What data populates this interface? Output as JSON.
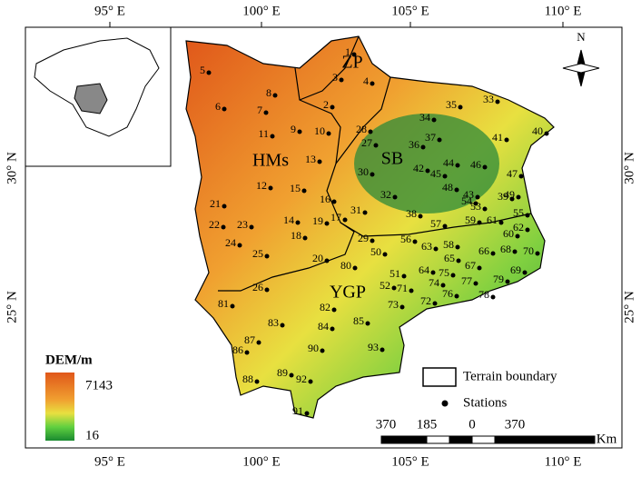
{
  "axis_labels": {
    "top": [
      "95° E",
      "100° E",
      "105° E",
      "110° E"
    ],
    "bottom": [
      "95° E",
      "100° E",
      "105° E",
      "110° E"
    ],
    "left": [
      "30° N",
      "25° N"
    ],
    "right": [
      "30° N",
      "25° N"
    ]
  },
  "regions": [
    "HMs",
    "SB",
    "ZP",
    "YGP"
  ],
  "stations": [
    "1",
    "2",
    "3",
    "4",
    "5",
    "6",
    "7",
    "8",
    "9",
    "10",
    "11",
    "12",
    "13",
    "14",
    "15",
    "16",
    "17",
    "18",
    "19",
    "20",
    "21",
    "22",
    "23",
    "24",
    "25",
    "26",
    "27",
    "28",
    "29",
    "30",
    "31",
    "32",
    "33",
    "34",
    "35",
    "36",
    "37",
    "38",
    "39",
    "40",
    "41",
    "42",
    "43",
    "44",
    "45",
    "46",
    "47",
    "48",
    "49",
    "50",
    "51",
    "52",
    "53",
    "54",
    "55",
    "56",
    "57",
    "58",
    "59",
    "60",
    "61",
    "62",
    "63",
    "64",
    "65",
    "66",
    "67",
    "68",
    "69",
    "70",
    "71",
    "72",
    "73",
    "74",
    "75",
    "76",
    "77",
    "78",
    "79",
    "80",
    "81",
    "82",
    "83",
    "84",
    "85",
    "86",
    "87",
    "88",
    "89",
    "90",
    "91",
    "92",
    "93"
  ],
  "legend": {
    "title": "DEM/m",
    "max": "7143",
    "min": "16",
    "boundary": "Terrain boundary",
    "stations": "Stations"
  },
  "scale_bar": {
    "labels": [
      "370",
      "185",
      "0",
      "370"
    ],
    "unit": "Km"
  },
  "north": "N"
}
